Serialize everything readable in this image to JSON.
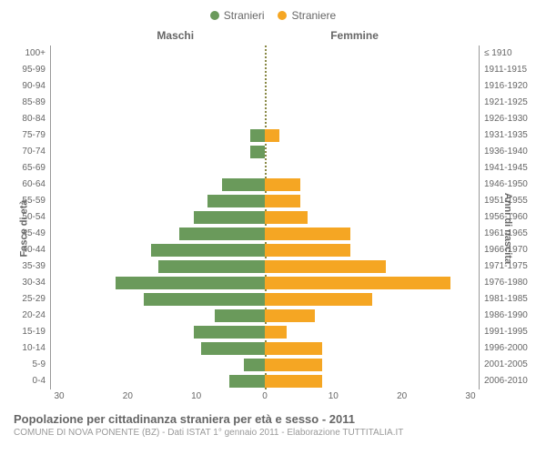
{
  "legend": {
    "male": "Stranieri",
    "female": "Straniere",
    "male_color": "#6a9a5b",
    "female_color": "#f5a623"
  },
  "headers": {
    "left": "Maschi",
    "right": "Femmine"
  },
  "axis_labels": {
    "left": "Fasce di età",
    "right": "Anni di nascita"
  },
  "age_groups": [
    "100+",
    "95-99",
    "90-94",
    "85-89",
    "80-84",
    "75-79",
    "70-74",
    "65-69",
    "60-64",
    "55-59",
    "50-54",
    "45-49",
    "40-44",
    "35-39",
    "30-34",
    "25-29",
    "20-24",
    "15-19",
    "10-14",
    "5-9",
    "0-4"
  ],
  "birth_years": [
    "≤ 1910",
    "1911-1915",
    "1916-1920",
    "1921-1925",
    "1926-1930",
    "1931-1935",
    "1936-1940",
    "1941-1945",
    "1946-1950",
    "1951-1955",
    "1956-1960",
    "1961-1965",
    "1966-1970",
    "1971-1975",
    "1976-1980",
    "1981-1985",
    "1986-1990",
    "1991-1995",
    "1996-2000",
    "2001-2005",
    "2006-2010"
  ],
  "male_values": [
    0,
    0,
    0,
    0,
    0,
    2,
    2,
    0,
    6,
    8,
    10,
    12,
    16,
    15,
    21,
    17,
    7,
    10,
    9,
    3,
    5
  ],
  "female_values": [
    0,
    0,
    0,
    0,
    0,
    2,
    0,
    0,
    5,
    5,
    6,
    12,
    12,
    17,
    26,
    15,
    7,
    3,
    8,
    8,
    8
  ],
  "x_ticks": [
    "30",
    "20",
    "10",
    "0",
    "10",
    "20",
    "30"
  ],
  "x_max": 30,
  "footer": {
    "title": "Popolazione per cittadinanza straniera per età e sesso - 2011",
    "subtitle": "COMUNE DI NOVA PONENTE (BZ) - Dati ISTAT 1° gennaio 2011 - Elaborazione TUTTITALIA.IT"
  },
  "colors": {
    "bg": "#ffffff",
    "text": "#666666",
    "subtext": "#999999",
    "center_line": "#888844"
  }
}
